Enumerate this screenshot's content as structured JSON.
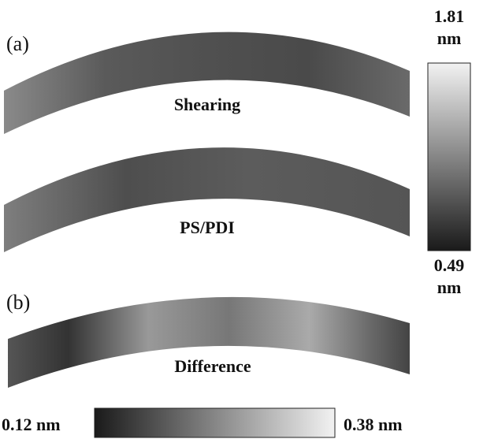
{
  "panels": [
    {
      "label": "(a)"
    },
    {
      "label": "(b)"
    }
  ],
  "maps": [
    {
      "label": "Shearing"
    },
    {
      "label": "PS/PDI"
    },
    {
      "label": "Difference"
    }
  ],
  "colorbars": [
    {
      "max": "1.81",
      "max_unit": "nm",
      "min": "0.49",
      "min_unit": "nm"
    },
    {
      "min": "0.12 nm",
      "max": "0.38 nm"
    }
  ]
}
